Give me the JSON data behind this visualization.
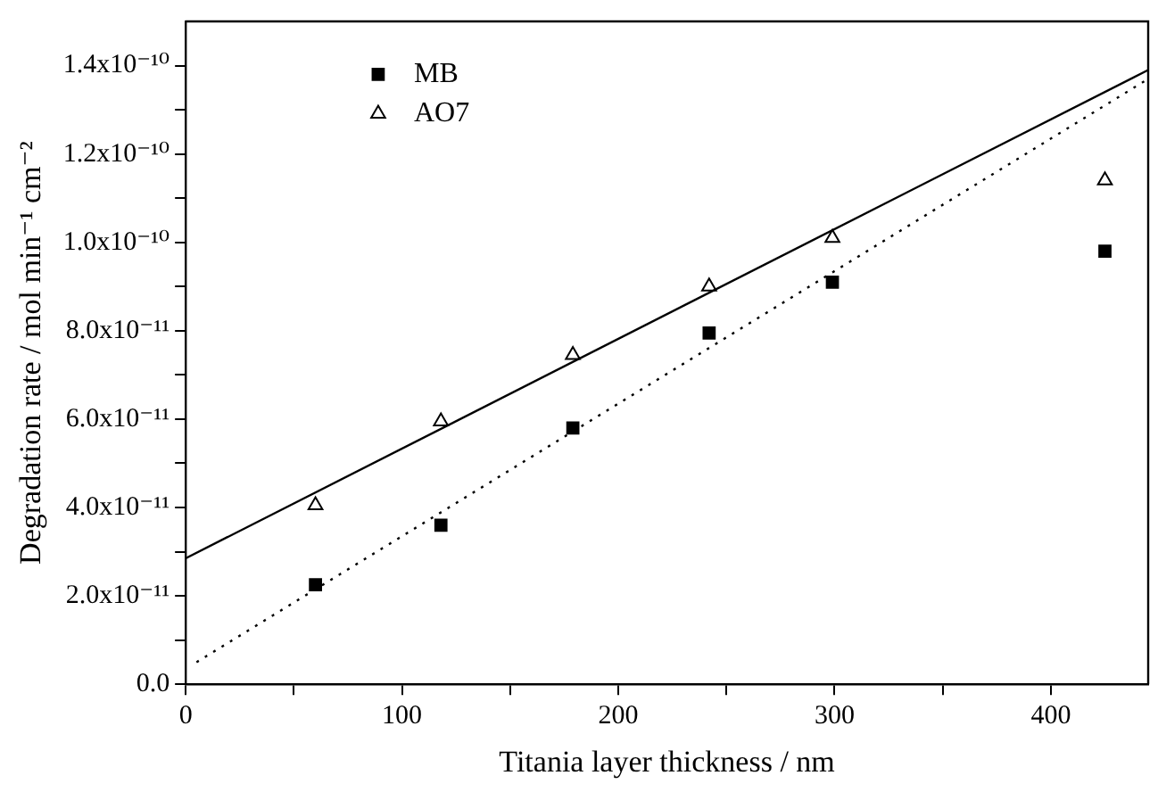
{
  "chart_data": {
    "type": "scatter",
    "xlabel": "Titania layer thickness / nm",
    "ylabel": "Degradation rate / mol min⁻¹ cm⁻²",
    "xlim": [
      0,
      445
    ],
    "ylim": [
      0,
      1.5e-10
    ],
    "xticks": [
      0,
      {
        "value": 50,
        "label": null
      },
      100,
      {
        "value": 150,
        "label": null
      },
      200,
      {
        "value": 250,
        "label": null
      },
      300,
      {
        "value": 350,
        "label": null
      },
      400
    ],
    "yticks": [
      {
        "value": 0,
        "label": "0.0"
      },
      {
        "value": 1e-11,
        "label": null
      },
      {
        "value": 2e-11,
        "label": "2.0x10⁻¹¹"
      },
      {
        "value": 3e-11,
        "label": null
      },
      {
        "value": 4e-11,
        "label": "4.0x10⁻¹¹"
      },
      {
        "value": 5e-11,
        "label": null
      },
      {
        "value": 6e-11,
        "label": "6.0x10⁻¹¹"
      },
      {
        "value": 7e-11,
        "label": null
      },
      {
        "value": 8e-11,
        "label": "8.0x10⁻¹¹"
      },
      {
        "value": 9e-11,
        "label": null
      },
      {
        "value": 1e-10,
        "label": "1.0x10⁻¹⁰"
      },
      {
        "value": 1.1e-10,
        "label": null
      },
      {
        "value": 1.2e-10,
        "label": "1.2x10⁻¹⁰"
      },
      {
        "value": 1.3e-10,
        "label": null
      },
      {
        "value": 1.4e-10,
        "label": "1.4x10⁻¹⁰"
      }
    ],
    "grid": false,
    "legend": "top left",
    "x": [
      60,
      118,
      179,
      242,
      299,
      425
    ],
    "series": [
      {
        "name": "MB",
        "color": "#000000",
        "marker": "square",
        "values": [
          2.25e-11,
          3.6e-11,
          5.8e-11,
          7.95e-11,
          9.1e-11,
          9.8e-11
        ]
      },
      {
        "name": "AO7",
        "color": "#000000",
        "marker": "triangle",
        "values": [
          4.05e-11,
          5.95e-11,
          7.45e-11,
          9e-11,
          1.01e-10,
          1.14e-10
        ]
      },
      {
        "type": "line",
        "color": "#000000",
        "marker": "none",
        "line_style": "solid",
        "x": [
          0,
          445
        ],
        "values": [
          2.85e-11,
          1.39e-10
        ]
      },
      {
        "type": "line",
        "color": "#000000",
        "marker": "none",
        "line_style": "dotted",
        "x": [
          5,
          445
        ],
        "values": [
          5e-12,
          1.37e-10
        ]
      }
    ]
  }
}
